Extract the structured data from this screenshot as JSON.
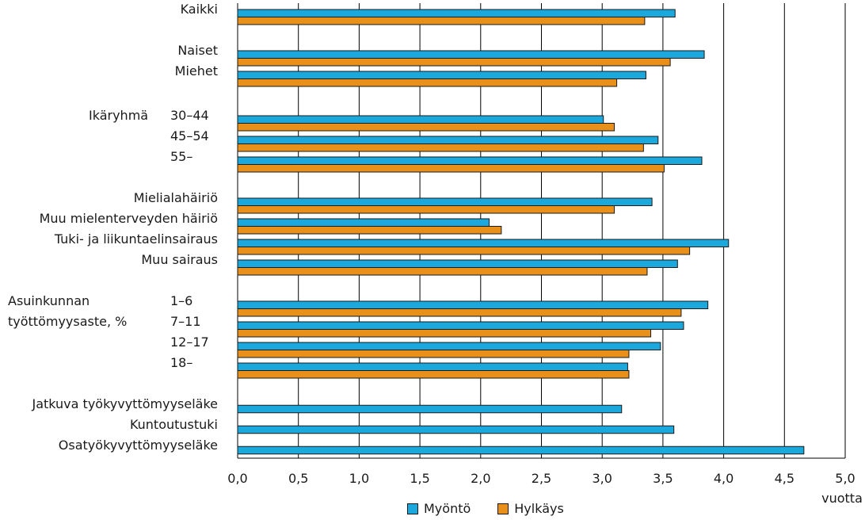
{
  "chart_data": {
    "type": "bar",
    "orientation": "horizontal",
    "unit_label": "vuotta",
    "xlim": [
      0,
      5
    ],
    "x_ticks": [
      "0,0",
      "0,5",
      "1,0",
      "1,5",
      "2,0",
      "2,5",
      "3,0",
      "3,5",
      "4,0",
      "4,5",
      "5,0"
    ],
    "grid": "vertical",
    "legend_position": "bottom",
    "groups": [
      {
        "label": "",
        "rows": [
          {
            "label": "Kaikki",
            "values": [
              3.6,
              3.35
            ]
          }
        ]
      },
      {
        "label": "",
        "rows": [
          {
            "label": "Naiset",
            "values": [
              3.84,
              3.56
            ]
          },
          {
            "label": "Miehet",
            "values": [
              3.36,
              3.12
            ]
          }
        ]
      },
      {
        "label": "Ikäryhmä",
        "rows": [
          {
            "label": "30–44",
            "values": [
              3.01,
              3.1
            ]
          },
          {
            "label": "45–54",
            "values": [
              3.46,
              3.34
            ]
          },
          {
            "label": "55–",
            "values": [
              3.82,
              3.51
            ]
          }
        ]
      },
      {
        "label": "",
        "rows": [
          {
            "label": "Mielialahäiriö",
            "values": [
              3.41,
              3.1
            ]
          },
          {
            "label": "Muu mielenterveyden häiriö",
            "values": [
              2.07,
              2.17
            ]
          },
          {
            "label": "Tuki- ja liikuntaelinsairaus",
            "values": [
              4.04,
              3.72
            ]
          },
          {
            "label": "Muu sairaus",
            "values": [
              3.62,
              3.37
            ]
          }
        ]
      },
      {
        "label": "Asuinkunnan työttömyysaste, %",
        "rows": [
          {
            "label": "1–6",
            "values": [
              3.87,
              3.65
            ]
          },
          {
            "label": "7–11",
            "values": [
              3.67,
              3.4
            ]
          },
          {
            "label": "12–17",
            "values": [
              3.48,
              3.22
            ]
          },
          {
            "label": "18–",
            "values": [
              3.21,
              3.22
            ]
          }
        ]
      },
      {
        "label": "",
        "rows": [
          {
            "label": "Jatkuva työkyvyttömyyseläke",
            "values": [
              3.16,
              null
            ]
          },
          {
            "label": "Kuntoutustuki",
            "values": [
              3.59,
              null
            ]
          },
          {
            "label": "Osatyökyvyttömyyseläke",
            "values": [
              4.66,
              null
            ]
          }
        ]
      }
    ],
    "series": [
      {
        "name": "Myöntö",
        "color": "#1ba8dd"
      },
      {
        "name": "Hylkäys",
        "color": "#e8901a"
      }
    ]
  }
}
